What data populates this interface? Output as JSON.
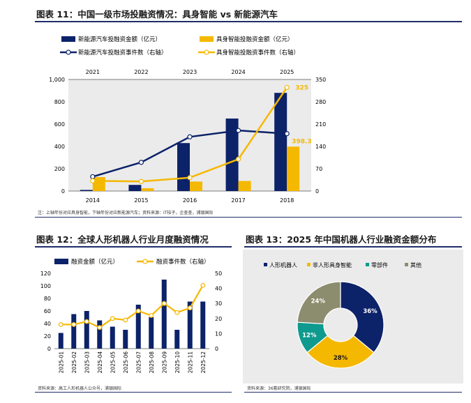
{
  "figure11": {
    "title": "图表 11：中国一级市场投融资情况：具身智能 vs 新能源汽车",
    "note": "注：上轴年份对应具身智能，下轴年份对应新能源汽车；资料来源：IT桔子，企查查，浦银国际",
    "chart_data": {
      "type": "bar",
      "categories": [
        "2014",
        "2015",
        "2016",
        "2017",
        "2018"
      ],
      "top_categories": [
        "2021",
        "2022",
        "2023",
        "2024",
        "2025"
      ],
      "series": [
        {
          "name": "新能源汽车投融资金额（亿元）",
          "kind": "bar",
          "axis": "left",
          "values": [
            10,
            55,
            430,
            650,
            880
          ]
        },
        {
          "name": "具身智能投融资金额（亿元）",
          "kind": "bar",
          "axis": "left",
          "values": [
            125,
            25,
            85,
            90,
            398.3
          ]
        },
        {
          "name": "新能源汽车投融资事件数（右轴）",
          "kind": "line",
          "axis": "right",
          "values": [
            45,
            90,
            170,
            190,
            180
          ]
        },
        {
          "name": "具身智能投融资事件数（右轴）",
          "kind": "line",
          "axis": "right",
          "values": [
            32,
            30,
            42,
            100,
            325
          ]
        }
      ],
      "data_labels": [
        "325",
        "398.3"
      ],
      "ylim": [
        0,
        1000
      ],
      "yticks": [
        "0",
        "200",
        "400",
        "600",
        "800",
        "1,000"
      ],
      "y2lim": [
        0,
        350
      ],
      "y2ticks": [
        "0",
        "70",
        "140",
        "210",
        "280",
        "350"
      ],
      "colors": {
        "navy": "#0c2269",
        "gold": "#f5b800"
      }
    }
  },
  "figure12": {
    "title": "图表 12：全球人形机器人行业月度融资情况",
    "note": "资料来源：高工人形机器人公众号，浦银国际",
    "chart_data": {
      "type": "bar",
      "categories": [
        "2025-01",
        "2025-02",
        "2025-03",
        "2025-04",
        "2025-05",
        "2025-06",
        "2025-07",
        "2025-08",
        "2025-09",
        "2025-10",
        "2025-11",
        "2025-12"
      ],
      "series": [
        {
          "name": "融资金额（亿元）",
          "kind": "bar",
          "axis": "left",
          "values": [
            25,
            55,
            60,
            45,
            35,
            30,
            70,
            50,
            110,
            30,
            75,
            75
          ]
        },
        {
          "name": "融资事件数（右轴）",
          "kind": "line",
          "axis": "right",
          "values": [
            16,
            16,
            18,
            14,
            20,
            19,
            25,
            22,
            30,
            24,
            27,
            42
          ]
        }
      ],
      "ylim": [
        0,
        120
      ],
      "yticks": [
        "0",
        "20",
        "40",
        "60",
        "80",
        "100",
        "120"
      ],
      "y2lim": [
        0,
        50
      ],
      "y2ticks": [
        "0",
        "10",
        "20",
        "30",
        "40",
        "50"
      ]
    }
  },
  "figure13": {
    "title": "图表 13：2025 年中国机器人行业融资金额分布",
    "note": "资料来源：36氪研究院，浦银国际",
    "chart_data": {
      "type": "pie",
      "categories": [
        "人形机器人",
        "非人形具身智能",
        "零部件",
        "其他"
      ],
      "values": [
        36,
        28,
        12,
        24
      ],
      "labels": [
        "36%",
        "28%",
        "12%",
        "24%"
      ],
      "colors": [
        "#0c2269",
        "#f5b800",
        "#0e9a8e",
        "#8c8c6e"
      ]
    }
  }
}
